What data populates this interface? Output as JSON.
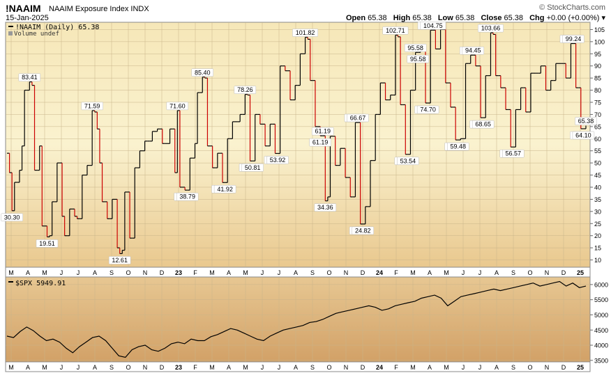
{
  "header": {
    "symbol": "!NAAIM",
    "name": "NAAIM Exposure Index",
    "exchange": "INDX",
    "date": "15-Jan-2025",
    "brand": "© StockCharts.com",
    "open_label": "Open",
    "open": "65.38",
    "high_label": "High",
    "high": "65.38",
    "low_label": "Low",
    "low": "65.38",
    "close_label": "Close",
    "close": "65.38",
    "chg_label": "Chg",
    "chg": "+0.00 (+0.00%)"
  },
  "colors": {
    "up": "#000000",
    "down": "#cc0000",
    "panel_top": "#faf1c8",
    "panel_bottom": "#d8a86a"
  },
  "chart_data": [
    {
      "type": "line",
      "legend": "!NAAIM (Daily) 65.38",
      "legend2": "Volume undef",
      "x_axis": [
        "M",
        "A",
        "M",
        "J",
        "J",
        "A",
        "S",
        "O",
        "N",
        "D",
        "23",
        "F",
        "M",
        "A",
        "M",
        "J",
        "J",
        "A",
        "S",
        "O",
        "N",
        "D",
        "24",
        "F",
        "M",
        "A",
        "M",
        "J",
        "J",
        "A",
        "S",
        "O",
        "N",
        "D",
        "25"
      ],
      "ylim": [
        7,
        108
      ],
      "y_ticks": [
        10,
        15,
        20,
        25,
        30,
        35,
        40,
        45,
        50,
        55,
        60,
        65,
        70,
        75,
        80,
        85,
        90,
        95,
        100,
        105
      ],
      "values": [
        54,
        46,
        30.3,
        42,
        42,
        47,
        57,
        80,
        80,
        83.41,
        82,
        47,
        47,
        57,
        24,
        24,
        19.51,
        20,
        34,
        34,
        50,
        50,
        28,
        20,
        20,
        31,
        31,
        28,
        27,
        27,
        45,
        45,
        49,
        49,
        71.59,
        71,
        64,
        50,
        34,
        34,
        27,
        27,
        35,
        35,
        15,
        12.61,
        14,
        38,
        38,
        19,
        19,
        48,
        48,
        55,
        55,
        59,
        59,
        59,
        63,
        63,
        64,
        64,
        58,
        58,
        58,
        64,
        64,
        46,
        71.6,
        40,
        40,
        38.79,
        38.79,
        52,
        52,
        58,
        79,
        79,
        85.4,
        85,
        57,
        57,
        48,
        48,
        54,
        54,
        41.92,
        41.92,
        60,
        60,
        67,
        67,
        67,
        70,
        70,
        78.26,
        78,
        50.81,
        50.81,
        70,
        70,
        66,
        66,
        57,
        57,
        66,
        66,
        53.92,
        53.92,
        90,
        90,
        88,
        88,
        76,
        76,
        82,
        82,
        95,
        95,
        101.82,
        101,
        84,
        84,
        65,
        65,
        61.19,
        61.19,
        34.36,
        36,
        61,
        61,
        49,
        49,
        56,
        56,
        44,
        44,
        36,
        36,
        66.67,
        66.67,
        24.82,
        24.82,
        32,
        32,
        51,
        51,
        70,
        70,
        83,
        83,
        76,
        76,
        78,
        78,
        102.71,
        102,
        74,
        74,
        53.54,
        53.54,
        80,
        80,
        95.58,
        95.58,
        96,
        96,
        74.7,
        74.7,
        104.75,
        104.75,
        97,
        97,
        105,
        105,
        83,
        83,
        73,
        73,
        59.48,
        59.48,
        60,
        60,
        91,
        91,
        94.45,
        94.45,
        90,
        90,
        68.65,
        68.65,
        86,
        86,
        103.66,
        103,
        86,
        86,
        81,
        81,
        72,
        72,
        56.57,
        56.57,
        72,
        72,
        81,
        81,
        71,
        71,
        87,
        87,
        87,
        87,
        90,
        90,
        80,
        80,
        84,
        84,
        91,
        91,
        91,
        91,
        85,
        85,
        99.24,
        99.24,
        81,
        81,
        64.1,
        64.1,
        65.38
      ]
    },
    {
      "type": "line",
      "legend": "$SPX 5949.91",
      "x_axis": [
        "M",
        "A",
        "M",
        "J",
        "J",
        "A",
        "S",
        "O",
        "N",
        "D",
        "23",
        "F",
        "M",
        "A",
        "M",
        "J",
        "J",
        "A",
        "S",
        "O",
        "N",
        "D",
        "24",
        "F",
        "M",
        "A",
        "M",
        "J",
        "J",
        "A",
        "S",
        "O",
        "N",
        "D",
        "25"
      ],
      "ylim": [
        3450,
        6250
      ],
      "y_ticks": [
        3500,
        4000,
        4500,
        5000,
        5500,
        6000
      ],
      "values": [
        4300,
        4250,
        4450,
        4600,
        4480,
        4300,
        4150,
        4200,
        4100,
        3900,
        3750,
        3950,
        4100,
        4250,
        4300,
        4150,
        3900,
        3650,
        3600,
        3850,
        3950,
        4000,
        3850,
        3800,
        3900,
        4050,
        4100,
        4050,
        4200,
        4150,
        4150,
        4280,
        4350,
        4450,
        4550,
        4500,
        4400,
        4300,
        4200,
        4150,
        4300,
        4400,
        4500,
        4550,
        4600,
        4650,
        4750,
        4780,
        4850,
        4950,
        5050,
        5100,
        5150,
        5200,
        5250,
        5300,
        5250,
        5150,
        5200,
        5300,
        5350,
        5400,
        5450,
        5550,
        5600,
        5650,
        5550,
        5300,
        5450,
        5600,
        5650,
        5700,
        5750,
        5800,
        5850,
        5800,
        5850,
        5900,
        5950,
        6000,
        6050,
        5950,
        6000,
        6050,
        6100,
        5950,
        6050,
        5900,
        5949.91
      ]
    }
  ]
}
